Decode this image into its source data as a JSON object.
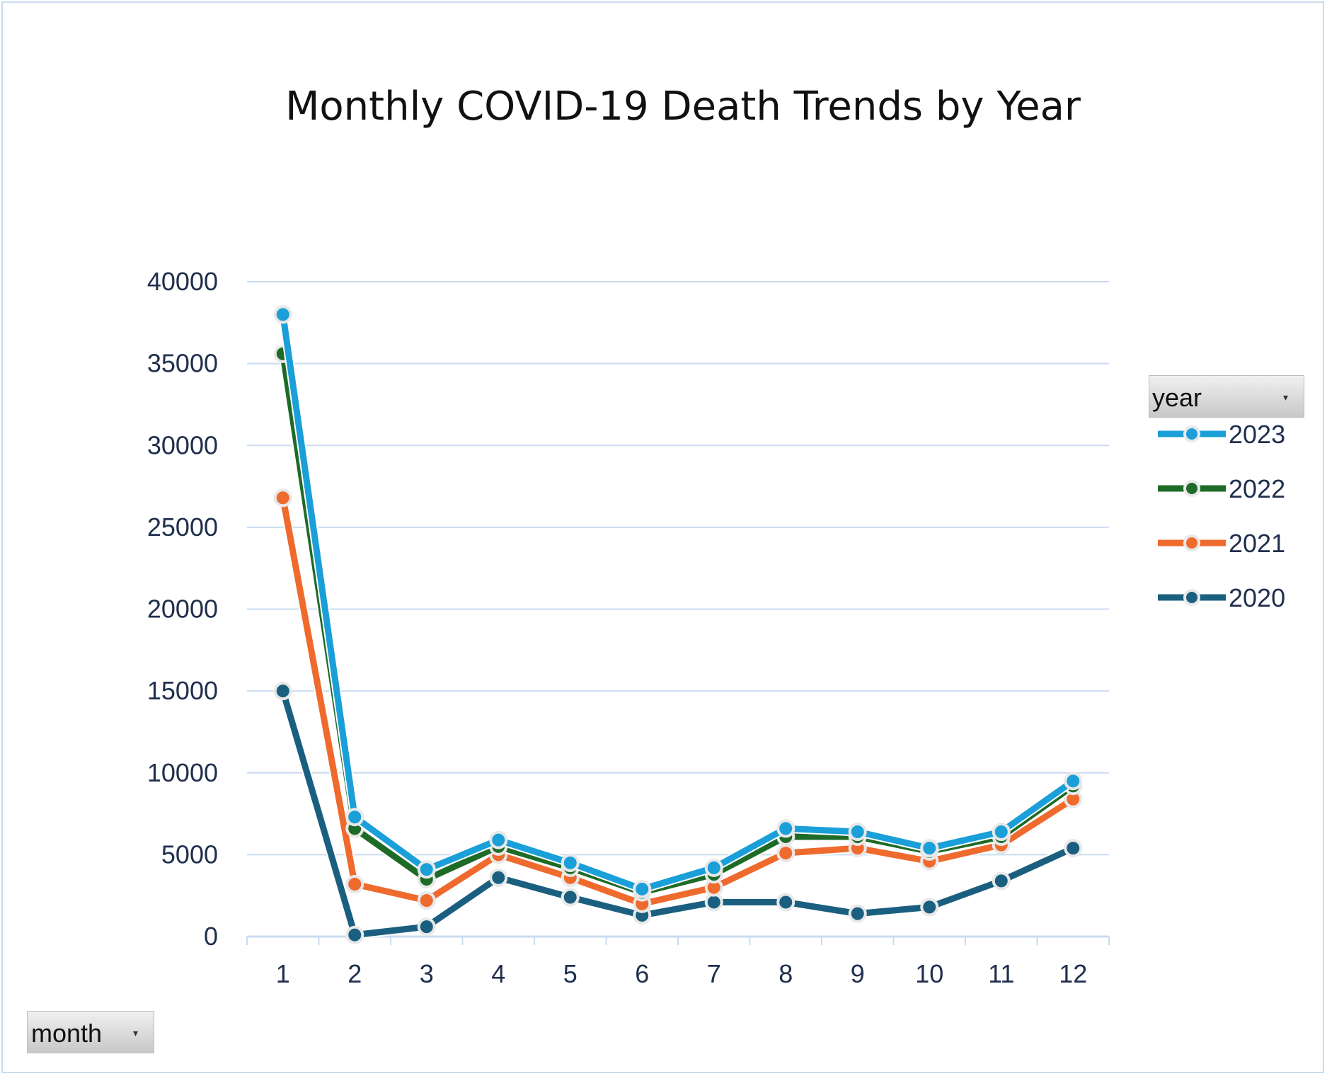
{
  "chart_data": {
    "type": "line",
    "title": "Monthly COVID-19 Death Trends by Year",
    "categories": [
      "1",
      "2",
      "3",
      "4",
      "5",
      "6",
      "7",
      "8",
      "9",
      "10",
      "11",
      "12"
    ],
    "ylim": [
      0,
      40000
    ],
    "yticks": [
      "0",
      "5000",
      "10000",
      "15000",
      "20000",
      "25000",
      "30000",
      "35000",
      "40000"
    ],
    "grid": true,
    "legend_position": "right",
    "legend_title": "year",
    "x_field_button": "month",
    "series": [
      {
        "name": "2023",
        "color": "#1b9fd8",
        "values": [
          38000,
          7300,
          4100,
          5900,
          4500,
          2900,
          4200,
          6600,
          6400,
          5400,
          6400,
          9500
        ]
      },
      {
        "name": "2022",
        "color": "#1e6b27",
        "values": [
          35600,
          6600,
          3500,
          5500,
          4200,
          2700,
          3800,
          6100,
          6100,
          5200,
          6100,
          9200
        ]
      },
      {
        "name": "2021",
        "color": "#ef6a2d",
        "values": [
          26800,
          3200,
          2200,
          5000,
          3600,
          2000,
          3000,
          5100,
          5400,
          4600,
          5600,
          8400
        ]
      },
      {
        "name": "2020",
        "color": "#1a5f7f",
        "values": [
          15000,
          100,
          600,
          3600,
          2400,
          1300,
          2100,
          2100,
          1400,
          1800,
          3400,
          5400
        ]
      }
    ]
  }
}
